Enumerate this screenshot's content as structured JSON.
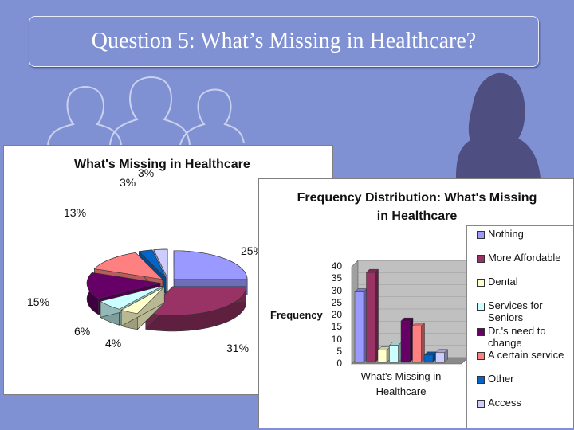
{
  "slide": {
    "title": "Question 5: What’s Missing in Healthcare?",
    "background_color": "#8091d3"
  },
  "chart_data": [
    {
      "type": "pie",
      "title": "What's Missing in Healthcare",
      "categories": [
        "Nothing",
        "More Affordable",
        "Dental",
        "Services for Seniors",
        "Dr.'s need to change",
        "A certain service",
        "Other",
        "Access"
      ],
      "values": [
        25,
        31,
        4,
        6,
        15,
        13,
        3,
        3
      ],
      "labels": [
        "25%",
        "31%",
        "4%",
        "6%",
        "15%",
        "13%",
        "3%",
        "3%"
      ],
      "colors": [
        "#9999ff",
        "#993366",
        "#ffffcc",
        "#ccffff",
        "#660066",
        "#ff8080",
        "#0066cc",
        "#ccccff"
      ],
      "style": "3d-exploded"
    },
    {
      "type": "bar",
      "title": "Frequency Distribution: What's Missing in Healthcare",
      "ylabel": "Frequency",
      "xlabel": "What's Missing in Healthcare",
      "ylim": [
        0,
        40
      ],
      "yticks": [
        "0",
        "5",
        "10",
        "15",
        "20",
        "25",
        "30",
        "35",
        "40"
      ],
      "series": [
        {
          "name": "Nothing",
          "value": 29,
          "color": "#9999ff"
        },
        {
          "name": "More Affordable",
          "value": 37,
          "color": "#993366"
        },
        {
          "name": "Dental",
          "value": 5,
          "color": "#ffffcc"
        },
        {
          "name": "Services for Seniors",
          "value": 7,
          "color": "#ccffff"
        },
        {
          "name": "Dr.'s need to change",
          "value": 17,
          "color": "#660066"
        },
        {
          "name": "A certain service",
          "value": 15,
          "color": "#ff8080"
        },
        {
          "name": "Other",
          "value": 3,
          "color": "#0066cc"
        },
        {
          "name": "Access",
          "value": 4,
          "color": "#ccccff"
        }
      ],
      "legend": "right",
      "style": "3d"
    }
  ]
}
